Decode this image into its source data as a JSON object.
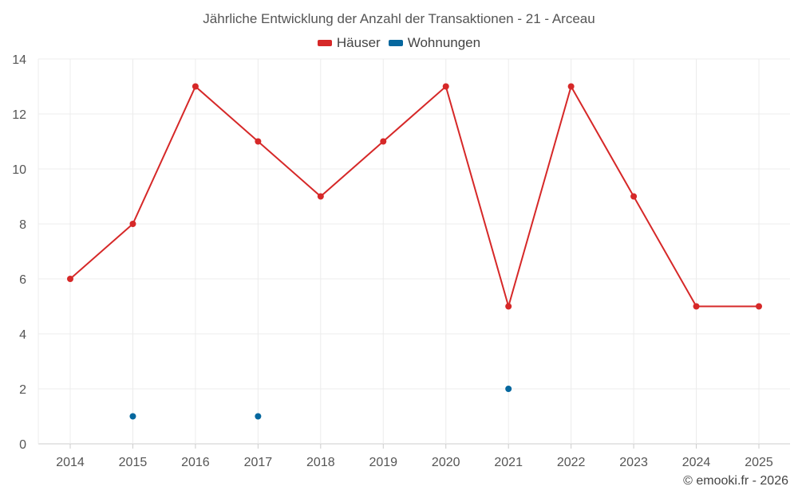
{
  "chart_data": {
    "type": "line",
    "title": "Jährliche Entwicklung der Anzahl der Transaktionen - 21 - Arceau",
    "categories": [
      "2014",
      "2015",
      "2016",
      "2017",
      "2018",
      "2019",
      "2020",
      "2021",
      "2022",
      "2023",
      "2024",
      "2025"
    ],
    "ylim": [
      0,
      14
    ],
    "yticks": [
      0,
      2,
      4,
      6,
      8,
      10,
      12,
      14
    ],
    "grid": true,
    "legend_position": "top-center",
    "series": [
      {
        "name": "Häuser",
        "color": "#d62828",
        "values": [
          6,
          8,
          13,
          11,
          9,
          11,
          13,
          5,
          13,
          9,
          5,
          5
        ]
      },
      {
        "name": "Wohnungen",
        "color": "#05679e",
        "values": [
          null,
          1,
          null,
          1,
          null,
          null,
          null,
          2,
          null,
          null,
          null,
          null
        ]
      }
    ]
  },
  "footer": {
    "copyright": "© emooki.fr - 2026"
  }
}
